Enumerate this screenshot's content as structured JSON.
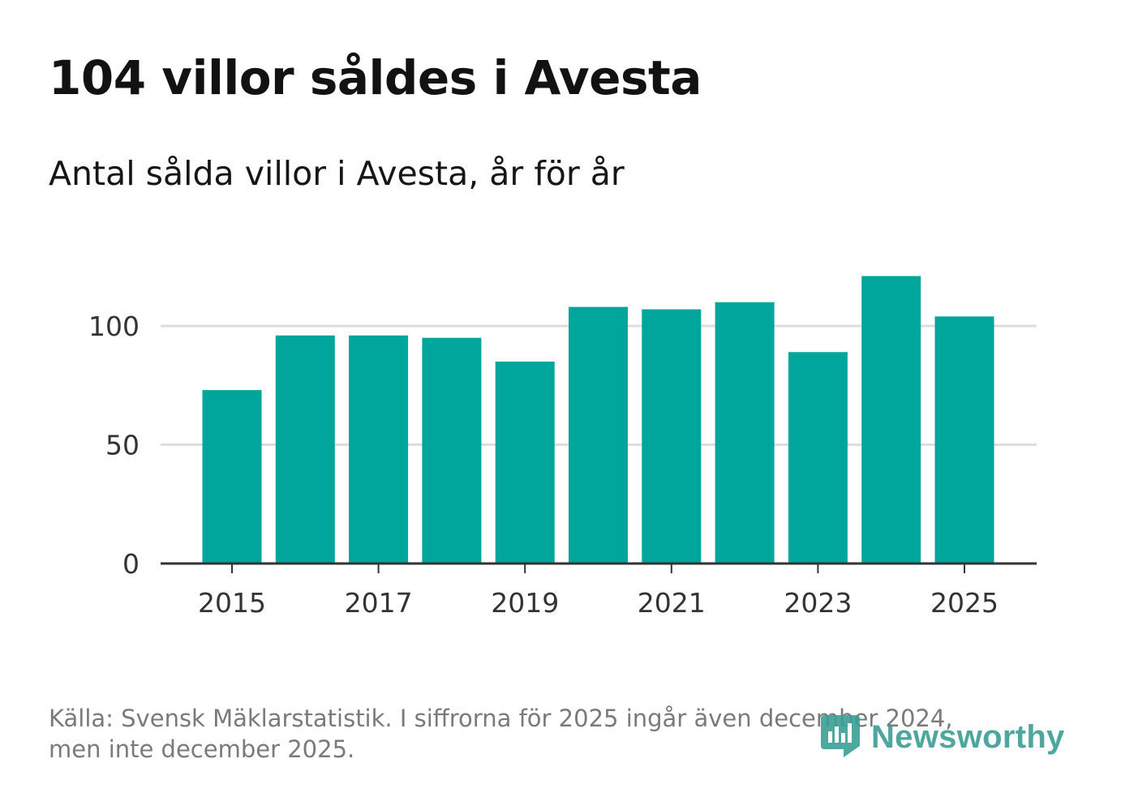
{
  "title": "104 villor såldes i Avesta",
  "subtitle": "Antal sålda villor i Avesta, år för år",
  "footer": {
    "line1": "Källa: Svensk Mäklarstatistik. I siffrorna för 2025 ingår även december 2024,",
    "line2": "men inte december 2025."
  },
  "logo": {
    "text": "Newsworthy",
    "icon": "newsworthy-logo-icon"
  },
  "colors": {
    "bar": "#00a59b",
    "grid": "#dddddd",
    "axis": "#333333",
    "tick_text": "#333333",
    "logo": "#3a9e95"
  },
  "chart_data": {
    "type": "bar",
    "categories": [
      "2015",
      "2016",
      "2017",
      "2018",
      "2019",
      "2020",
      "2021",
      "2022",
      "2023",
      "2024",
      "2025"
    ],
    "values": [
      73,
      96,
      96,
      95,
      85,
      108,
      107,
      110,
      89,
      121,
      104
    ],
    "x_tick_labels": [
      "2015",
      "2017",
      "2019",
      "2021",
      "2023",
      "2025"
    ],
    "y_ticks": [
      0,
      50,
      100
    ],
    "ylim": [
      0,
      135
    ],
    "grid": true,
    "title": "104 villor såldes i Avesta",
    "xlabel": "",
    "ylabel": ""
  }
}
